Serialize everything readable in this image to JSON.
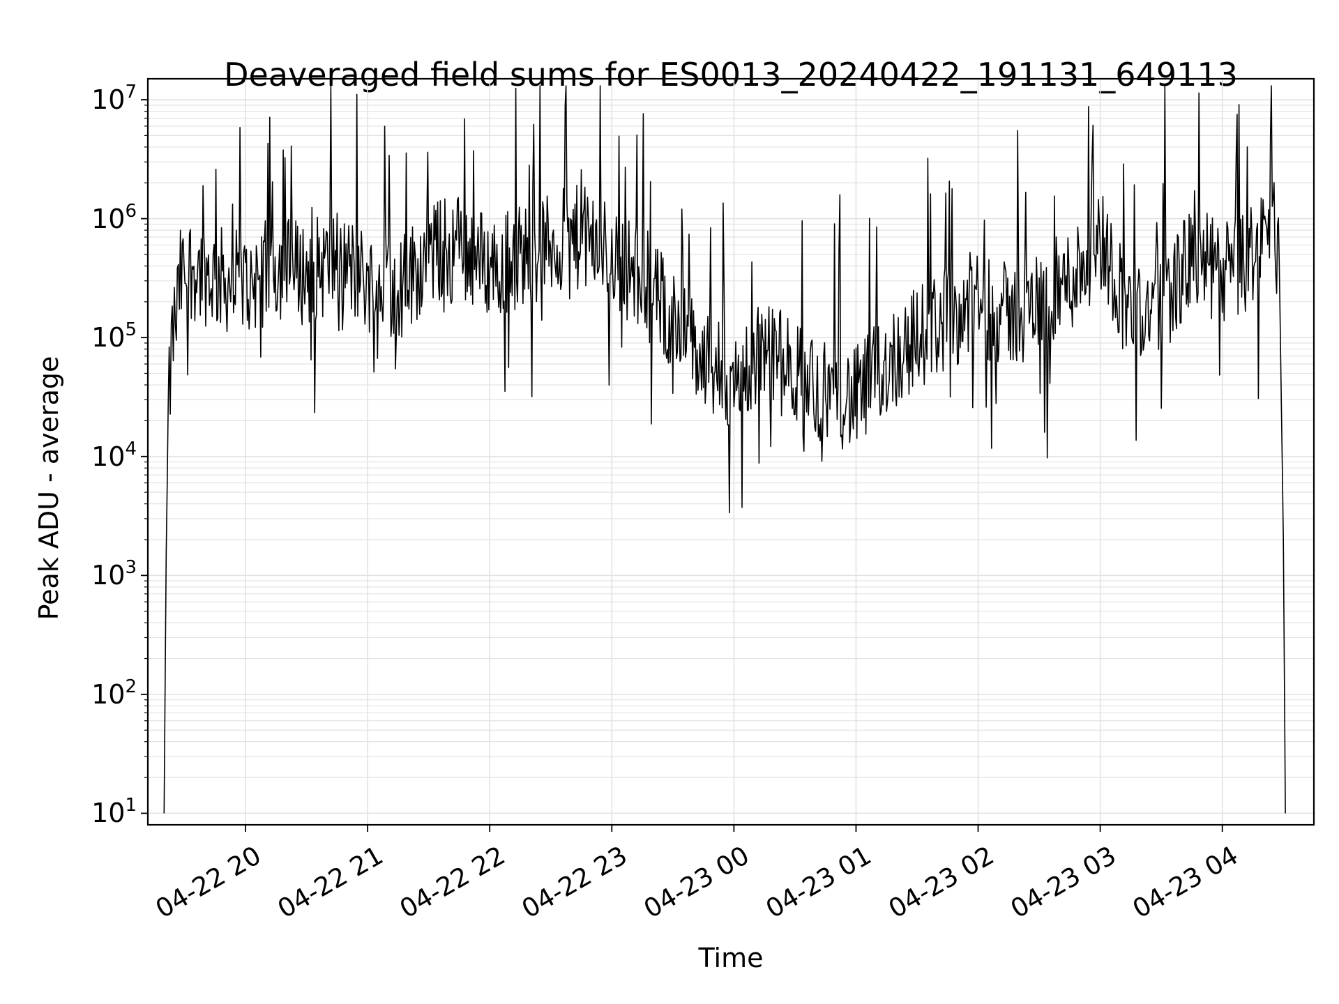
{
  "chart_data": {
    "type": "line",
    "title": "Deaveraged field sums for ES0013_20240422_191131_649113",
    "xlabel": "Time",
    "ylabel": "Peak ADU - average",
    "yscale": "log",
    "ylim": [
      8,
      15000000
    ],
    "xlim": [
      "2024-04-22 19:12",
      "2024-04-23 04:45"
    ],
    "grid": "major and minor, light gray",
    "line_color": "#000000",
    "yticks": [
      {
        "base": "10",
        "exp": "1",
        "value": 10
      },
      {
        "base": "10",
        "exp": "2",
        "value": 100
      },
      {
        "base": "10",
        "exp": "3",
        "value": 1000
      },
      {
        "base": "10",
        "exp": "4",
        "value": 10000
      },
      {
        "base": "10",
        "exp": "5",
        "value": 100000
      },
      {
        "base": "10",
        "exp": "6",
        "value": 1000000
      },
      {
        "base": "10",
        "exp": "7",
        "value": 10000000
      }
    ],
    "xticks": [
      {
        "label": "04-22 20",
        "time": "2024-04-22 20:00"
      },
      {
        "label": "04-22 21",
        "time": "2024-04-22 21:00"
      },
      {
        "label": "04-22 22",
        "time": "2024-04-22 22:00"
      },
      {
        "label": "04-22 23",
        "time": "2024-04-22 23:00"
      },
      {
        "label": "04-23 00",
        "time": "2024-04-23 00:00"
      },
      {
        "label": "04-23 01",
        "time": "2024-04-23 01:00"
      },
      {
        "label": "04-23 02",
        "time": "2024-04-23 02:00"
      },
      {
        "label": "04-23 03",
        "time": "2024-04-23 03:00"
      },
      {
        "label": "04-23 04",
        "time": "2024-04-23 04:00"
      }
    ],
    "x": [
      "2024-04-22 19:20",
      "2024-04-22 19:21",
      "2024-04-22 19:22",
      "2024-04-22 19:24",
      "2024-04-22 19:26",
      "2024-04-22 19:28",
      "2024-04-22 19:32",
      "2024-04-22 19:40",
      "2024-04-22 19:50",
      "2024-04-22 20:00",
      "2024-04-22 20:15",
      "2024-04-22 20:30",
      "2024-04-22 20:45",
      "2024-04-22 21:00",
      "2024-04-22 21:15",
      "2024-04-22 21:30",
      "2024-04-22 21:45",
      "2024-04-22 22:00",
      "2024-04-22 22:15",
      "2024-04-22 22:30",
      "2024-04-22 22:45",
      "2024-04-22 23:00",
      "2024-04-22 23:15",
      "2024-04-22 23:30",
      "2024-04-22 23:45",
      "2024-04-23 00:00",
      "2024-04-23 00:15",
      "2024-04-23 00:30",
      "2024-04-23 00:45",
      "2024-04-23 01:00",
      "2024-04-23 01:15",
      "2024-04-23 01:30",
      "2024-04-23 01:45",
      "2024-04-23 02:00",
      "2024-04-23 02:15",
      "2024-04-23 02:30",
      "2024-04-23 02:45",
      "2024-04-23 03:00",
      "2024-04-23 03:15",
      "2024-04-23 03:30",
      "2024-04-23 03:45",
      "2024-04-23 04:00",
      "2024-04-23 04:10",
      "2024-04-23 04:20",
      "2024-04-23 04:25",
      "2024-04-23 04:28",
      "2024-04-23 04:30",
      "2024-04-23 04:31"
    ],
    "y": [
      10,
      1500,
      20000,
      100000,
      150000,
      300000,
      400000,
      350000,
      300000,
      280000,
      400000,
      350000,
      450000,
      300000,
      250000,
      500000,
      600000,
      400000,
      500000,
      600000,
      700000,
      500000,
      300000,
      150000,
      60000,
      40000,
      80000,
      50000,
      35000,
      30000,
      60000,
      100000,
      150000,
      200000,
      150000,
      200000,
      300000,
      700000,
      150000,
      200000,
      450000,
      350000,
      400000,
      700000,
      900000,
      400000,
      2000,
      10
    ]
  }
}
